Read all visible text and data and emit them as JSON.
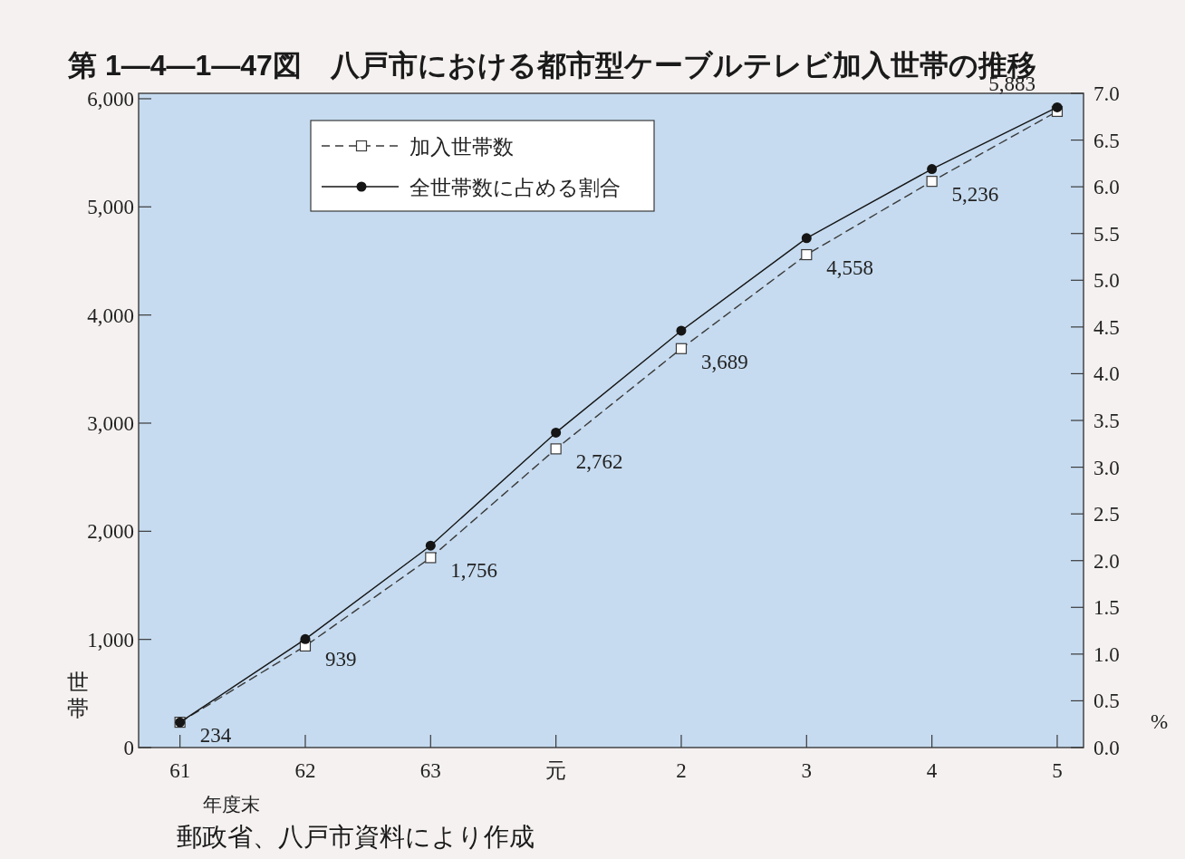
{
  "chart_data": {
    "type": "line",
    "title": "第 1—4—1—47図　八戸市における都市型ケーブルテレビ加入世帯の推移",
    "xlabel": "年度末",
    "ylabel": "世帯",
    "y2label": "%",
    "annotations": [
      "郵政省、八戸市資料により作成"
    ],
    "categories": [
      "61",
      "62",
      "63",
      "元",
      "2",
      "3",
      "4",
      "5"
    ],
    "series": [
      {
        "name": "加入世帯数",
        "color": "#3a3a3a",
        "marker": "square",
        "line_style": "dashed",
        "values": [
          234,
          939,
          1756,
          2762,
          3689,
          4558,
          5236,
          5883
        ],
        "value_labels": [
          "234",
          "939",
          "1,756",
          "2,762",
          "3,689",
          "4,558",
          "5,236",
          "5,883"
        ]
      },
      {
        "name": "全世帯数に占める割合",
        "color": "#151515",
        "marker": "circle",
        "line_style": "solid",
        "axis": "y2",
        "values": [
          0.27,
          1.16,
          2.16,
          3.37,
          4.46,
          5.45,
          6.19,
          6.85
        ]
      }
    ],
    "ylim": [
      0,
      6050
    ],
    "yticks": [
      0,
      {
        "value": 1000,
        "label": "1,000"
      },
      {
        "value": 2000,
        "label": "2,000"
      },
      {
        "value": 3000,
        "label": "3,000"
      },
      {
        "value": 4000,
        "label": "4,000"
      },
      {
        "value": 5000,
        "label": "5,000"
      },
      {
        "value": 6000,
        "label": "6,000"
      }
    ],
    "y2lim": [
      0,
      7
    ],
    "y2ticks": [
      {
        "value": 0,
        "label": "0.0"
      },
      0.5,
      {
        "value": 1,
        "label": "1.0"
      },
      1.5,
      {
        "value": 2,
        "label": "2.0"
      },
      2.5,
      {
        "value": 3,
        "label": "3.0"
      },
      3.5,
      {
        "value": 4,
        "label": "4.0"
      },
      4.5,
      {
        "value": 5,
        "label": "5.0"
      },
      5.5,
      {
        "value": 6,
        "label": "6.0"
      },
      6.5,
      {
        "value": 7,
        "label": "7.0"
      }
    ],
    "legend": "top left"
  }
}
